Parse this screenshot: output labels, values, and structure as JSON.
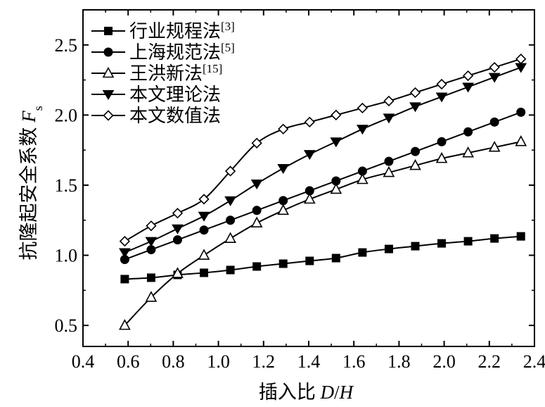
{
  "chart_data": {
    "type": "line",
    "title": "",
    "xlabel": "插入比 D/H",
    "xlabel_parts": {
      "prefix": "插入比 ",
      "var1": "D",
      "slash": "/",
      "var2": "H"
    },
    "ylabel": "抗隆起安全系数 Fs",
    "ylabel_parts": {
      "prefix": "抗隆起安全系数 ",
      "var": "F",
      "sub": "s"
    },
    "xlim": [
      0.4,
      2.4
    ],
    "ylim": [
      0.35,
      2.75
    ],
    "xticks": [
      0.4,
      0.6,
      0.8,
      1.0,
      1.2,
      1.4,
      1.6,
      1.8,
      2.0,
      2.2,
      2.4
    ],
    "xtick_labels": [
      "0.4",
      "0.6",
      "0.8",
      "1.0",
      "1.2",
      "1.4",
      "1.6",
      "1.8",
      "2.0",
      "2.2",
      "2.4"
    ],
    "yticks": [
      0.5,
      1.0,
      1.5,
      2.0,
      2.5
    ],
    "ytick_labels": [
      "0.5",
      "1.0",
      "1.5",
      "2.0",
      "2.5"
    ],
    "grid": false,
    "legend_position": "top-left",
    "x": [
      0.585,
      0.702,
      0.819,
      0.936,
      1.053,
      1.17,
      1.287,
      1.404,
      1.521,
      1.638,
      1.755,
      1.872,
      1.989,
      2.106,
      2.223,
      2.34
    ],
    "series": [
      {
        "name": "行业规程法",
        "ref": "[3]",
        "marker": "square",
        "values": [
          0.83,
          0.84,
          0.86,
          0.875,
          0.895,
          0.92,
          0.94,
          0.96,
          0.98,
          1.02,
          1.045,
          1.065,
          1.085,
          1.1,
          1.12,
          1.135
        ]
      },
      {
        "name": "上海规范法",
        "ref": "[5]",
        "marker": "circle",
        "values": [
          0.97,
          1.04,
          1.11,
          1.18,
          1.25,
          1.32,
          1.39,
          1.46,
          1.53,
          1.6,
          1.67,
          1.74,
          1.81,
          1.88,
          1.95,
          2.02
        ]
      },
      {
        "name": "王洪新法",
        "ref": "[15]",
        "marker": "triangle-up-open",
        "values": [
          0.5,
          0.7,
          0.87,
          1.0,
          1.12,
          1.23,
          1.32,
          1.4,
          1.47,
          1.54,
          1.59,
          1.64,
          1.69,
          1.73,
          1.77,
          1.81
        ]
      },
      {
        "name": "本文理论法",
        "ref": "",
        "marker": "triangle-down",
        "values": [
          1.02,
          1.1,
          1.19,
          1.28,
          1.39,
          1.51,
          1.62,
          1.72,
          1.81,
          1.9,
          1.98,
          2.06,
          2.13,
          2.2,
          2.27,
          2.34
        ]
      },
      {
        "name": "本文数值法",
        "ref": "",
        "marker": "diamond-open",
        "values": [
          1.1,
          1.21,
          1.3,
          1.4,
          1.6,
          1.8,
          1.9,
          1.95,
          2.0,
          2.05,
          2.1,
          2.16,
          2.22,
          2.28,
          2.34,
          2.4
        ]
      }
    ]
  }
}
